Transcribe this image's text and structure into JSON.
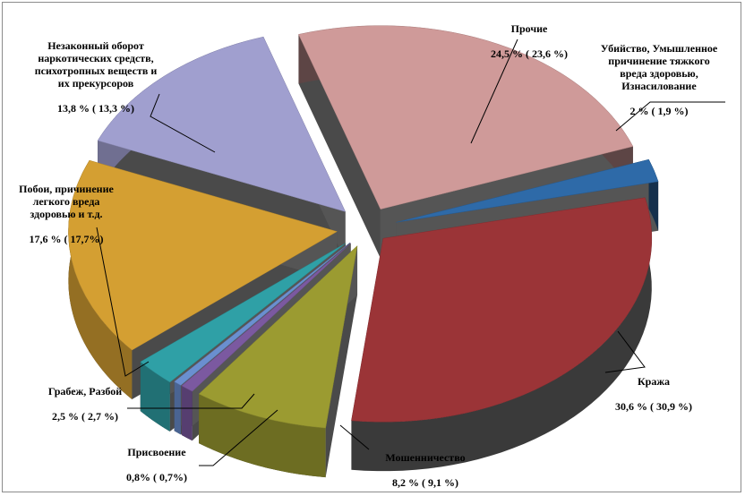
{
  "chart_data": {
    "type": "pie",
    "subtype": "exploded-3d",
    "slices": [
      {
        "name": "Убийство, Умышленное\nпричинение тяжкого\nвреда здоровью,\nИзнасилование",
        "value": 2.0,
        "prev_value": 1.9,
        "value_text": "2 % ( 1,9 %)",
        "color": "#2e6aa8"
      },
      {
        "name": "Кража",
        "value": 30.6,
        "prev_value": 30.9,
        "value_text": "30,6 % ( 30,9 %)",
        "color": "#9b3437"
      },
      {
        "name": "Мошенничество",
        "value": 8.2,
        "prev_value": 9.1,
        "value_text": "8,2 % ( 9,1 %)",
        "color": "#9b9b31"
      },
      {
        "name": "Присвоение",
        "value": 0.8,
        "prev_value": 0.7,
        "value_text": "0,8% ( 0,7%)",
        "color": "#7b59a0"
      },
      {
        "name": "",
        "value": 0.5,
        "prev_value": null,
        "value_text": "",
        "color": "#6a8fd0"
      },
      {
        "name": "Грабеж, Разбой",
        "value": 2.5,
        "prev_value": 2.7,
        "value_text": "2,5 % ( 2,7 %)",
        "color": "#2fa0a6"
      },
      {
        "name": "Побои, причинение\nлегкого вреда\nздоровью  и т.д.",
        "value": 17.6,
        "prev_value": 17.7,
        "value_text": "17,6 % ( 17,7%)",
        "color": "#d49f32"
      },
      {
        "name": "Незаконный оборот\nнаркотических средств,\nпсихотропных веществ и\nих прекурсоров",
        "value": 13.8,
        "prev_value": 13.3,
        "value_text": "13,8 % ( 13,3 %)",
        "color": "#a09fcf"
      },
      {
        "name": "Прочие",
        "value": 24.5,
        "prev_value": 23.6,
        "value_text": "24,5 % ( 23,6 %)",
        "color": "#cf9a99"
      }
    ]
  }
}
